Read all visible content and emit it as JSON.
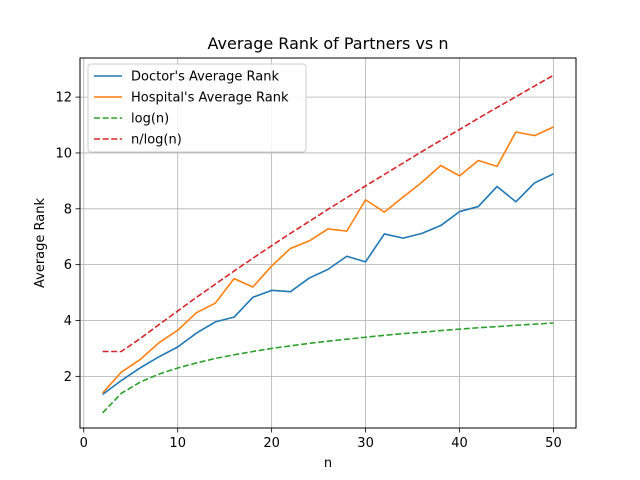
{
  "chart_data": {
    "type": "line",
    "title": "Average Rank of Partners vs n",
    "xlabel": "n",
    "ylabel": "Average Rank",
    "xlim": [
      -0.4,
      52.4
    ],
    "ylim": [
      0.15,
      13.4
    ],
    "xticks": [
      0,
      10,
      20,
      30,
      40,
      50
    ],
    "yticks": [
      2,
      4,
      6,
      8,
      10,
      12
    ],
    "grid": true,
    "legend_position": "top-left",
    "x": [
      2,
      4,
      6,
      8,
      10,
      12,
      14,
      16,
      18,
      20,
      22,
      24,
      26,
      28,
      30,
      32,
      34,
      36,
      38,
      40,
      42,
      44,
      46,
      48,
      50
    ],
    "series": [
      {
        "name": "Doctor's Average Rank",
        "color": "#1f77b4",
        "style": "solid",
        "values": [
          1.35,
          1.85,
          2.3,
          2.7,
          3.05,
          3.55,
          3.95,
          4.12,
          4.83,
          5.08,
          5.03,
          5.52,
          5.83,
          6.3,
          6.1,
          7.1,
          6.95,
          7.12,
          7.4,
          7.9,
          8.08,
          8.8,
          8.25,
          8.93,
          9.25
        ]
      },
      {
        "name": "Hospital's Average Rank",
        "color": "#ff7f0e",
        "style": "solid",
        "values": [
          1.4,
          2.15,
          2.6,
          3.2,
          3.65,
          4.28,
          4.62,
          5.5,
          5.2,
          5.95,
          6.58,
          6.85,
          7.28,
          7.2,
          8.32,
          7.88,
          8.42,
          8.95,
          9.55,
          9.18,
          9.73,
          9.52,
          10.75,
          10.62,
          10.93
        ]
      },
      {
        "name": "log(n)",
        "color": "#2ca02c",
        "style": "dashed",
        "values": [
          0.69,
          1.39,
          1.79,
          2.08,
          2.3,
          2.48,
          2.64,
          2.77,
          2.89,
          3.0,
          3.09,
          3.18,
          3.26,
          3.33,
          3.4,
          3.47,
          3.53,
          3.58,
          3.64,
          3.69,
          3.74,
          3.78,
          3.83,
          3.87,
          3.91
        ]
      },
      {
        "name": "n/log(n)",
        "color": "#d62728",
        "style": "dashed",
        "values": [
          2.89,
          2.89,
          3.35,
          3.85,
          4.34,
          4.83,
          5.3,
          5.77,
          6.23,
          6.68,
          7.12,
          7.55,
          7.98,
          8.4,
          8.82,
          9.23,
          9.64,
          10.05,
          10.45,
          10.84,
          11.24,
          11.63,
          12.01,
          12.4,
          12.78
        ]
      }
    ]
  }
}
